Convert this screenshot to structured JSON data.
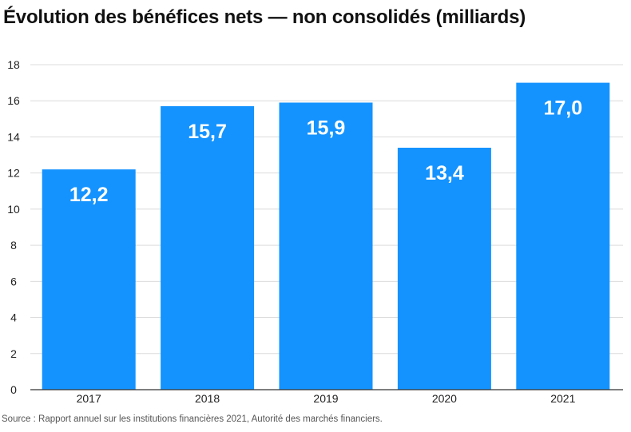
{
  "chart_data": {
    "type": "bar",
    "title": "Évolution des bénéfices nets — non consolidés (milliards)",
    "categories": [
      "2017",
      "2018",
      "2019",
      "2020",
      "2021"
    ],
    "values": [
      12.2,
      15.7,
      15.9,
      13.4,
      17.0
    ],
    "value_labels": [
      "12,2",
      "15,7",
      "15,9",
      "13,4",
      "17,0"
    ],
    "y_ticks": [
      0,
      2,
      4,
      6,
      8,
      10,
      12,
      14,
      16,
      18
    ],
    "ylim": [
      0,
      18
    ],
    "xlabel": "",
    "ylabel": "",
    "grid": true,
    "bar_color": "#1493ff",
    "label_color": "#ffffff",
    "source": "Source : Rapport annuel sur les institutions financières 2021, Autorité des marchés financiers."
  }
}
